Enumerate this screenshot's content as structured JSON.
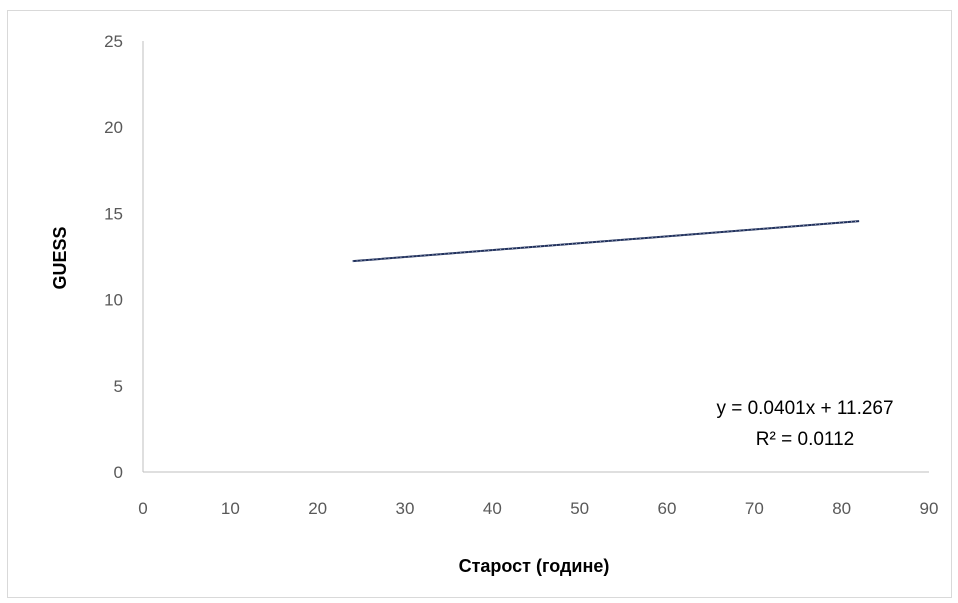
{
  "chart_data": {
    "type": "line",
    "title": "",
    "xlabel": "Старост (године)",
    "ylabel": "GUESS",
    "xlim": [
      0,
      90
    ],
    "ylim": [
      0,
      25
    ],
    "x_ticks": [
      0,
      10,
      20,
      30,
      40,
      50,
      60,
      70,
      80,
      90
    ],
    "y_ticks": [
      0,
      5,
      10,
      15,
      20,
      25
    ],
    "grid": false,
    "legend": "none",
    "series": [
      {
        "kind": "trendline",
        "x": [
          24,
          82
        ],
        "y": [
          12.23,
          14.55
        ],
        "color": "#1f2f5a"
      }
    ],
    "annotation": {
      "equation": "y = 0.0401x + 11.267",
      "r_squared": "R² = 0.0112"
    },
    "colors": {
      "axis": "#bfbfbf",
      "tick_text": "#595959",
      "line": "#1f2f5a"
    }
  }
}
